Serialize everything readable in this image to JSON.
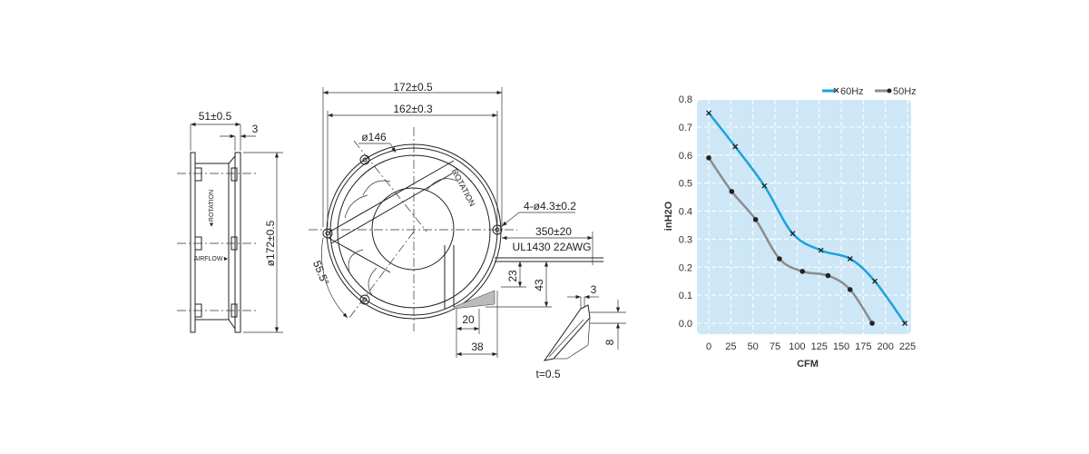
{
  "side_view": {
    "depth_dim": "51±0.5",
    "flange_dim": "3",
    "diameter_dim": "ø172±0.5",
    "rotation_label": "◄ROTATION",
    "airflow_label": "AIRFLOW►"
  },
  "front_view": {
    "outer_dim": "172±0.5",
    "hole_span_dim": "162±0.3",
    "inner_dia_dim": "ø146",
    "hole_dim": "4-ø4.3±0.2",
    "lead_length_dim": "350±20",
    "wire_spec": "UL1430 22AWG",
    "angle_dim": "55.5°",
    "rotation_label": "ROTATION",
    "dim_23": "23",
    "dim_43": "43",
    "dim_20": "20",
    "dim_38": "38"
  },
  "terminal_detail": {
    "dim_3": "3",
    "dim_8": "8",
    "thickness": "t=0.5"
  },
  "chart_data": {
    "type": "line",
    "xlabel": "CFM",
    "ylabel": "inH2O",
    "xlim": [
      0,
      225
    ],
    "ylim": [
      0,
      0.8
    ],
    "xticks": [
      "0",
      "25",
      "50",
      "75",
      "100",
      "125",
      "150",
      "175",
      "200",
      "225"
    ],
    "yticks": [
      "0.0",
      "0.1",
      "0.2",
      "0.3",
      "0.4",
      "0.5",
      "0.6",
      "0.7",
      "0.8"
    ],
    "grid": true,
    "legend_position": "top-right",
    "background_color": "#cde7f6",
    "series": [
      {
        "name": "60Hz",
        "color": "#1ba3dc",
        "marker": "x",
        "x": [
          0,
          30,
          63,
          95,
          127,
          160,
          188,
          222
        ],
        "y": [
          0.75,
          0.63,
          0.49,
          0.32,
          0.26,
          0.23,
          0.15,
          0.0
        ]
      },
      {
        "name": "50Hz",
        "color": "#8c8c8c",
        "marker": "dot",
        "x": [
          0,
          26,
          53,
          80,
          106,
          135,
          160,
          185
        ],
        "y": [
          0.59,
          0.47,
          0.37,
          0.23,
          0.185,
          0.17,
          0.12,
          0.0
        ]
      }
    ]
  }
}
